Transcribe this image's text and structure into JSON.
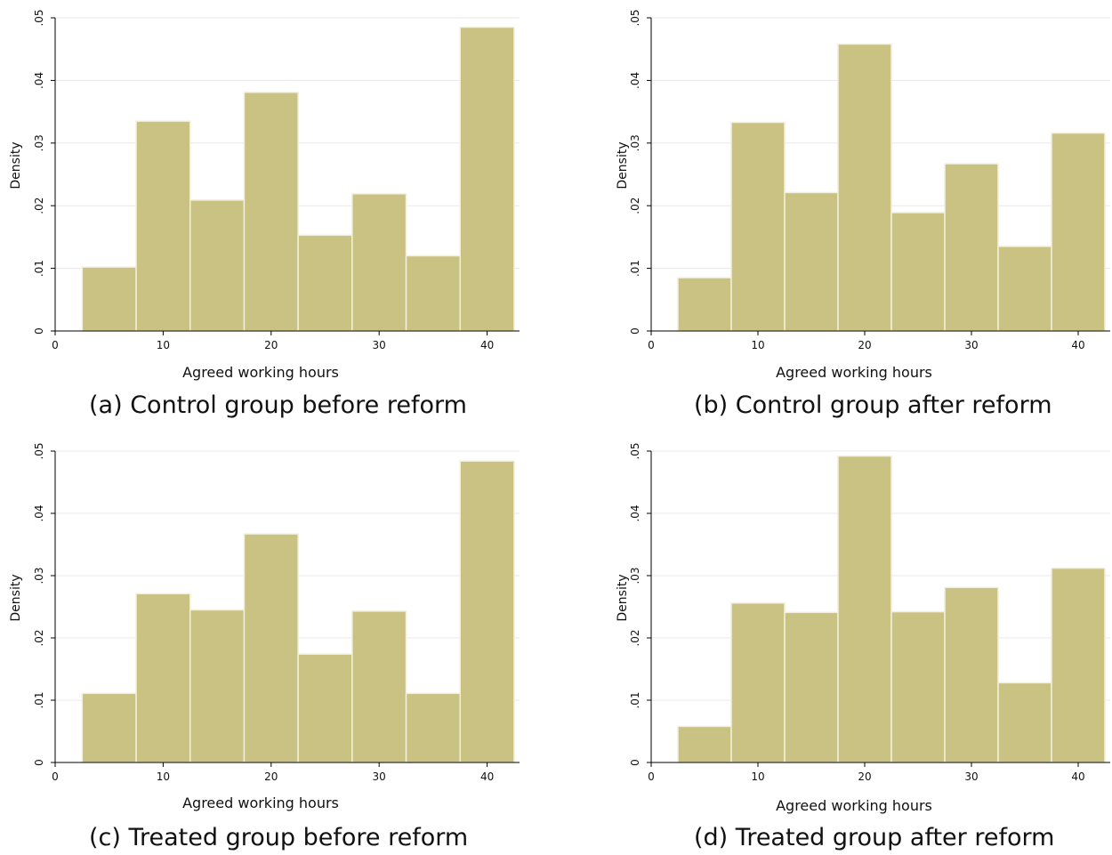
{
  "chart_data": [
    {
      "type": "bar",
      "caption": "(a) Control group before reform",
      "xlabel": "Agreed working hours",
      "ylabel": "Density",
      "xlim": [
        0,
        43
      ],
      "ylim": [
        0,
        0.05
      ],
      "xticks": [
        "0",
        "10",
        "20",
        "30",
        "40"
      ],
      "yticks": [
        "0",
        ".01",
        ".02",
        ".03",
        ".04",
        ".05"
      ],
      "bin_width": 5,
      "bin_centers": [
        5,
        10,
        15,
        20,
        25,
        30,
        35,
        40
      ],
      "values": [
        0.0102,
        0.0335,
        0.0209,
        0.0381,
        0.0153,
        0.0219,
        0.012,
        0.0485
      ],
      "grid": true,
      "color": "#c9c283"
    },
    {
      "type": "bar",
      "caption": "(b) Control group after reform",
      "xlabel": "Agreed working hours",
      "ylabel": "Density",
      "xlim": [
        0,
        43
      ],
      "ylim": [
        0,
        0.05
      ],
      "xticks": [
        "0",
        "10",
        "20",
        "30",
        "40"
      ],
      "yticks": [
        "0",
        ".01",
        ".02",
        ".03",
        ".04",
        ".05"
      ],
      "bin_width": 5,
      "bin_centers": [
        5,
        10,
        15,
        20,
        25,
        30,
        35,
        40
      ],
      "values": [
        0.0085,
        0.0333,
        0.0221,
        0.0458,
        0.0189,
        0.0267,
        0.0135,
        0.0316
      ],
      "grid": true,
      "color": "#c9c283"
    },
    {
      "type": "bar",
      "caption": "(c) Treated group before reform",
      "xlabel": "Agreed working hours",
      "ylabel": "Density",
      "xlim": [
        0,
        43
      ],
      "ylim": [
        0,
        0.05
      ],
      "xticks": [
        "0",
        "10",
        "20",
        "30",
        "40"
      ],
      "yticks": [
        "0",
        ".01",
        ".02",
        ".03",
        ".04",
        ".05"
      ],
      "bin_width": 5,
      "bin_centers": [
        5,
        10,
        15,
        20,
        25,
        30,
        35,
        40
      ],
      "values": [
        0.0111,
        0.0271,
        0.0245,
        0.0367,
        0.0174,
        0.0243,
        0.0111,
        0.0484
      ],
      "grid": true,
      "color": "#c9c283"
    },
    {
      "type": "bar",
      "caption": "(d) Treated group after reform",
      "xlabel": "Agreed working hours",
      "ylabel": "Density",
      "xlim": [
        0,
        43
      ],
      "ylim": [
        0,
        0.05
      ],
      "xticks": [
        "0",
        "10",
        "20",
        "30",
        "40"
      ],
      "yticks": [
        "0",
        ".01",
        ".02",
        ".03",
        ".04",
        ".05"
      ],
      "bin_width": 5,
      "bin_centers": [
        5,
        10,
        15,
        20,
        25,
        30,
        35,
        40
      ],
      "values": [
        0.0058,
        0.0256,
        0.0241,
        0.0492,
        0.0242,
        0.0281,
        0.0128,
        0.0312
      ],
      "grid": true,
      "color": "#c9c283"
    }
  ]
}
